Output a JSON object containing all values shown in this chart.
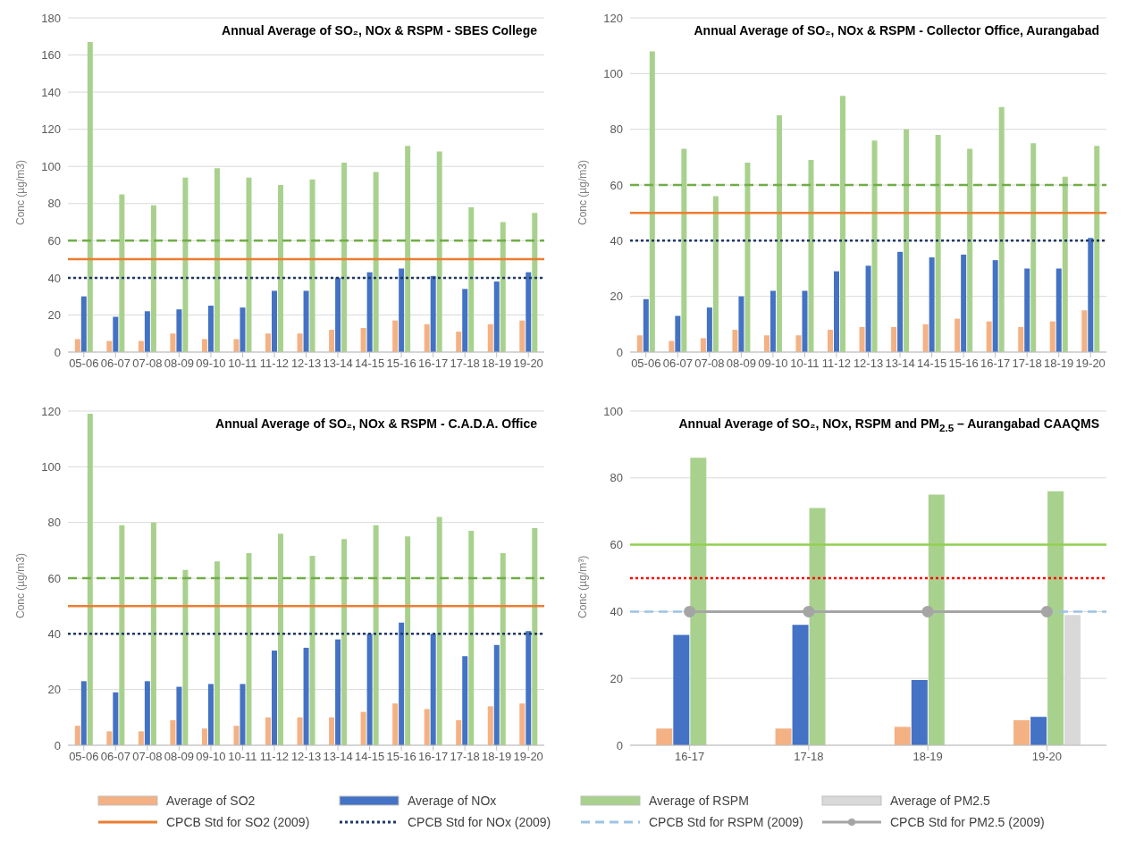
{
  "chart_data": [
    {
      "type": "bar",
      "title": "Annual Average of SO₂, NOx & RSPM - SBES College",
      "ylabel": "Conc (µg/m3)",
      "categories": [
        "05-06",
        "06-07",
        "07-08",
        "08-09",
        "09-10",
        "10-11",
        "11-12",
        "12-13",
        "13-14",
        "14-15",
        "15-16",
        "16-17",
        "17-18",
        "18-19",
        "19-20"
      ],
      "series": [
        {
          "name": "Average of SO2",
          "color": "#f4b183",
          "values": [
            7,
            6,
            6,
            10,
            7,
            7,
            10,
            10,
            12,
            13,
            17,
            15,
            11,
            15,
            17
          ]
        },
        {
          "name": "Average of NOx",
          "color": "#4472c4",
          "values": [
            30,
            19,
            22,
            23,
            25,
            24,
            33,
            33,
            40,
            43,
            45,
            41,
            34,
            38,
            43
          ]
        },
        {
          "name": "Average of RSPM",
          "color": "#a9d18e",
          "values": [
            167,
            85,
            79,
            94,
            99,
            94,
            90,
            93,
            102,
            97,
            111,
            108,
            78,
            70,
            75
          ]
        }
      ],
      "ref_lines": [
        {
          "axis": "y",
          "value": 60,
          "color": "#70ad47",
          "line_style": "dashed"
        },
        {
          "axis": "y",
          "value": 50,
          "label": "CPCB Std for SO2 (2009)",
          "color": "#ed7d31",
          "line_style": "solid"
        },
        {
          "axis": "y",
          "value": 40,
          "label": "CPCB Std for NOx (2009)",
          "color": "#203864",
          "line_style": "dotted"
        }
      ],
      "ylim": [
        0,
        180
      ],
      "yticks": [
        0,
        20,
        40,
        60,
        80,
        100,
        120,
        140,
        160,
        180
      ],
      "grid": "y",
      "legend": "bottom"
    },
    {
      "type": "bar",
      "title": "Annual Average of SO₂, NOx & RSPM - Collector Office, Aurangabad",
      "ylabel": "Conc (µg/m3)",
      "categories": [
        "05-06",
        "06-07",
        "07-08",
        "08-09",
        "09-10",
        "10-11",
        "11-12",
        "12-13",
        "13-14",
        "14-15",
        "15-16",
        "16-17",
        "17-18",
        "18-19",
        "19-20"
      ],
      "series": [
        {
          "color": "#f4b183",
          "values": [
            6,
            4,
            5,
            8,
            6,
            6,
            8,
            9,
            9,
            10,
            12,
            11,
            9,
            11,
            15
          ]
        },
        {
          "color": "#4472c4",
          "values": [
            19,
            13,
            16,
            20,
            22,
            22,
            29,
            31,
            36,
            34,
            35,
            33,
            30,
            30,
            41
          ]
        },
        {
          "color": "#a9d18e",
          "values": [
            108,
            73,
            56,
            68,
            85,
            69,
            92,
            76,
            80,
            78,
            73,
            88,
            75,
            63,
            74
          ]
        }
      ],
      "ref_lines": [
        {
          "axis": "y",
          "value": 60,
          "color": "#70ad47",
          "line_style": "dashed"
        },
        {
          "axis": "y",
          "value": 50,
          "color": "#ed7d31",
          "line_style": "solid"
        },
        {
          "axis": "y",
          "value": 40,
          "color": "#203864",
          "line_style": "dotted"
        }
      ],
      "ylim": [
        0,
        120
      ],
      "yticks": [
        0,
        20,
        40,
        60,
        80,
        100,
        120
      ],
      "grid": "y"
    },
    {
      "type": "bar",
      "title": "Annual Average of SO₂, NOx & RSPM - C.A.D.A. Office",
      "ylabel": "Conc (µg/m3)",
      "categories": [
        "05-06",
        "06-07",
        "07-08",
        "08-09",
        "09-10",
        "10-11",
        "11-12",
        "12-13",
        "13-14",
        "14-15",
        "15-16",
        "16-17",
        "17-18",
        "18-19",
        "19-20"
      ],
      "series": [
        {
          "color": "#f4b183",
          "values": [
            7,
            5,
            5,
            9,
            6,
            7,
            10,
            10,
            10,
            12,
            15,
            13,
            9,
            14,
            15
          ]
        },
        {
          "color": "#4472c4",
          "values": [
            23,
            19,
            23,
            21,
            22,
            22,
            34,
            35,
            38,
            40,
            44,
            40,
            32,
            36,
            41
          ]
        },
        {
          "color": "#a9d18e",
          "values": [
            119,
            79,
            80,
            63,
            66,
            69,
            76,
            68,
            74,
            79,
            75,
            82,
            77,
            69,
            78
          ]
        }
      ],
      "ref_lines": [
        {
          "axis": "y",
          "value": 60,
          "color": "#70ad47",
          "line_style": "dashed"
        },
        {
          "axis": "y",
          "value": 50,
          "color": "#ed7d31",
          "line_style": "solid"
        },
        {
          "axis": "y",
          "value": 40,
          "color": "#203864",
          "line_style": "dotted"
        }
      ],
      "ylim": [
        0,
        120
      ],
      "yticks": [
        0,
        20,
        40,
        60,
        80,
        100,
        120
      ],
      "grid": "y"
    },
    {
      "type": "bar",
      "title": "Annual Average of SO₂, NOx, RSPM and PM$_{2.5}$ – Aurangabad CAAQMS",
      "ylabel": "Conc (µg/m³)",
      "categories": [
        "16-17",
        "17-18",
        "18-19",
        "19-20"
      ],
      "series": [
        {
          "color": "#f4b183",
          "values": [
            5,
            5,
            5.5,
            7.5
          ]
        },
        {
          "color": "#4472c4",
          "values": [
            33,
            36,
            19.5,
            8.5
          ]
        },
        {
          "color": "#a9d18e",
          "values": [
            86,
            71,
            75,
            76
          ]
        },
        {
          "name": "Average of PM2.5",
          "color": "#d9d9d9",
          "values": [
            null,
            null,
            null,
            39
          ]
        },
        {
          "name": "CPCB Std for PM2.5 (2009)",
          "type": "line",
          "color": "#a5a5a5",
          "values": [
            40,
            40,
            40,
            40
          ],
          "marker": "circle"
        }
      ],
      "ref_lines": [
        {
          "axis": "y",
          "value": 60,
          "color": "#92d050",
          "line_style": "solid"
        },
        {
          "axis": "y",
          "value": 50,
          "color": "#ff0000",
          "line_style": "dotted"
        },
        {
          "axis": "y",
          "value": 40,
          "label": "CPCB Std for RSPM (2009)",
          "color": "#9dc3e6",
          "line_style": "dashed"
        }
      ],
      "ylim": [
        0,
        100
      ],
      "yticks": [
        0,
        20,
        40,
        60,
        80,
        100
      ],
      "grid": "y",
      "legend": "bottom"
    }
  ]
}
